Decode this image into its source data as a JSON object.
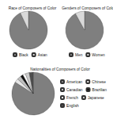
{
  "chart_data": [
    {
      "type": "pie",
      "title": "Race of Composers of Color",
      "categories": [
        "Black",
        "Asian"
      ],
      "values": [
        93,
        7
      ],
      "colors": [
        "#7f7f7f",
        "#d9d9d9"
      ],
      "legend": "bottom"
    },
    {
      "type": "pie",
      "title": "Genders of Composers of Color",
      "categories": [
        "Men",
        "Women"
      ],
      "values": [
        92,
        8
      ],
      "colors": [
        "#7f7f7f",
        "#d9d9d9"
      ],
      "legend": "bottom"
    },
    {
      "type": "pie",
      "title": "Nationalities of Composers of Color",
      "categories": [
        "American",
        "Chinese",
        "Canadian",
        "Brazilian",
        "French",
        "Japanese",
        "English"
      ],
      "values": [
        84,
        3,
        3,
        2,
        2,
        3,
        3
      ],
      "colors": [
        "#7f7f7f",
        "#e6e6e6",
        "#bfbfbf",
        "#111111",
        "#ffffff",
        "#cccccc",
        "#4d4d4d"
      ],
      "legend": "right"
    }
  ]
}
